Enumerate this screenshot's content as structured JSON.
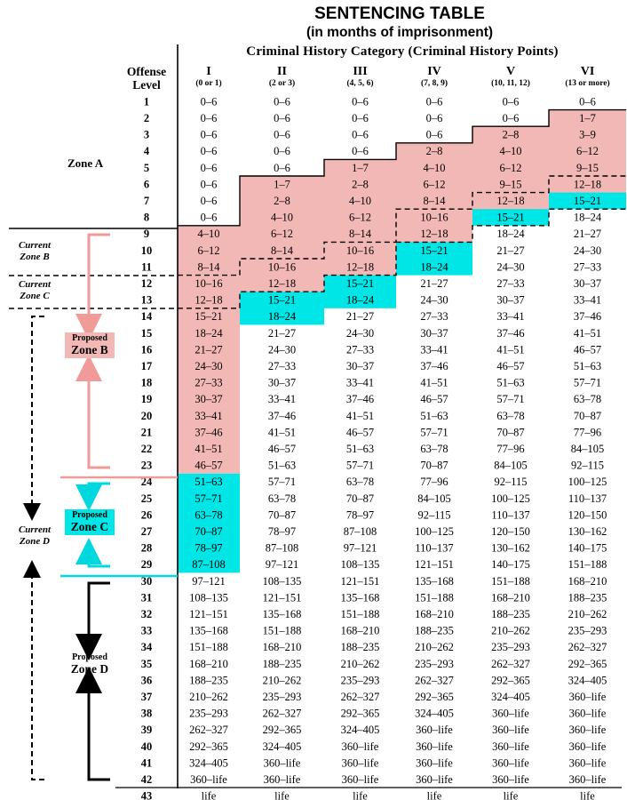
{
  "title": "SENTENCING TABLE",
  "subtitle": "(in months of imprisonment)",
  "header": {
    "category_title": "Criminal History Category (Criminal History Points)",
    "offense_label_line1": "Offense",
    "offense_label_line2": "Level",
    "columns": [
      {
        "roman": "I",
        "points": "(0 or 1)"
      },
      {
        "roman": "II",
        "points": "(2 or 3)"
      },
      {
        "roman": "III",
        "points": "(4, 5, 6)"
      },
      {
        "roman": "IV",
        "points": "(7, 8, 9)"
      },
      {
        "roman": "V",
        "points": "(10, 11, 12)"
      },
      {
        "roman": "VI",
        "points": "(13 or more)"
      }
    ]
  },
  "zones": {
    "zone_a": "Zone A",
    "current_b_line1": "Current",
    "current_b_line2": "Zone B",
    "current_c_line1": "Current",
    "current_c_line2": "Zone C",
    "current_d_line1": "Current",
    "current_d_line2": "Zone D",
    "proposed_b_small": "Proposed",
    "proposed_b_big": "Zone B",
    "proposed_c_small": "Proposed",
    "proposed_c_big": "Zone C",
    "proposed_d_small": "Proposed",
    "proposed_d_big": "Zone D"
  },
  "colors": {
    "pink_fill": "#f2b8b6",
    "cyan_fill": "#00e5e5",
    "pink_arrow": "#f09a9a",
    "cyan_arrow": "#00d8e0"
  },
  "rows": [
    {
      "level": "1",
      "cells": [
        "0–6",
        "0–6",
        "0–6",
        "0–6",
        "0–6",
        "0–6"
      ]
    },
    {
      "level": "2",
      "cells": [
        "0–6",
        "0–6",
        "0–6",
        "0–6",
        "0–6",
        "1–7"
      ]
    },
    {
      "level": "3",
      "cells": [
        "0–6",
        "0–6",
        "0–6",
        "0–6",
        "2–8",
        "3–9"
      ]
    },
    {
      "level": "4",
      "cells": [
        "0–6",
        "0–6",
        "0–6",
        "2–8",
        "4–10",
        "6–12"
      ]
    },
    {
      "level": "5",
      "cells": [
        "0–6",
        "0–6",
        "1–7",
        "4–10",
        "6–12",
        "9–15"
      ]
    },
    {
      "level": "6",
      "cells": [
        "0–6",
        "1–7",
        "2–8",
        "6–12",
        "9–15",
        "12–18"
      ]
    },
    {
      "level": "7",
      "cells": [
        "0–6",
        "2–8",
        "4–10",
        "8–14",
        "12–18",
        "15–21"
      ]
    },
    {
      "level": "8",
      "cells": [
        "0–6",
        "4–10",
        "6–12",
        "10–16",
        "15–21",
        "18–24"
      ]
    },
    {
      "level": "9",
      "cells": [
        "4–10",
        "6–12",
        "8–14",
        "12–18",
        "18–24",
        "21–27"
      ]
    },
    {
      "level": "10",
      "cells": [
        "6–12",
        "8–14",
        "10–16",
        "15–21",
        "21–27",
        "24–30"
      ]
    },
    {
      "level": "11",
      "cells": [
        "8–14",
        "10–16",
        "12–18",
        "18–24",
        "24–30",
        "27–33"
      ]
    },
    {
      "level": "12",
      "cells": [
        "10–16",
        "12–18",
        "15–21",
        "21–27",
        "27–33",
        "30–37"
      ]
    },
    {
      "level": "13",
      "cells": [
        "12–18",
        "15–21",
        "18–24",
        "24–30",
        "30–37",
        "33–41"
      ]
    },
    {
      "level": "14",
      "cells": [
        "15–21",
        "18–24",
        "21–27",
        "27–33",
        "33–41",
        "37–46"
      ]
    },
    {
      "level": "15",
      "cells": [
        "18–24",
        "21–27",
        "24–30",
        "30–37",
        "37–46",
        "41–51"
      ]
    },
    {
      "level": "16",
      "cells": [
        "21–27",
        "24–30",
        "27–33",
        "33–41",
        "41–51",
        "46–57"
      ]
    },
    {
      "level": "17",
      "cells": [
        "24–30",
        "27–33",
        "30–37",
        "37–46",
        "46–57",
        "51–63"
      ]
    },
    {
      "level": "18",
      "cells": [
        "27–33",
        "30–37",
        "33–41",
        "41–51",
        "51–63",
        "57–71"
      ]
    },
    {
      "level": "19",
      "cells": [
        "30–37",
        "33–41",
        "37–46",
        "46–57",
        "57–71",
        "63–78"
      ]
    },
    {
      "level": "20",
      "cells": [
        "33–41",
        "37–46",
        "41–51",
        "51–63",
        "63–78",
        "70–87"
      ]
    },
    {
      "level": "21",
      "cells": [
        "37–46",
        "41–51",
        "46–57",
        "57–71",
        "70–87",
        "77–96"
      ]
    },
    {
      "level": "22",
      "cells": [
        "41–51",
        "46–57",
        "51–63",
        "63–78",
        "77–96",
        "84–105"
      ]
    },
    {
      "level": "23",
      "cells": [
        "46–57",
        "51–63",
        "57–71",
        "70–87",
        "84–105",
        "92–115"
      ]
    },
    {
      "level": "24",
      "cells": [
        "51–63",
        "57–71",
        "63–78",
        "77–96",
        "92–115",
        "100–125"
      ]
    },
    {
      "level": "25",
      "cells": [
        "57–71",
        "63–78",
        "70–87",
        "84–105",
        "100–125",
        "110–137"
      ]
    },
    {
      "level": "26",
      "cells": [
        "63–78",
        "70–87",
        "78–97",
        "92–115",
        "110–137",
        "120–150"
      ]
    },
    {
      "level": "27",
      "cells": [
        "70–87",
        "78–97",
        "87–108",
        "100–125",
        "120–150",
        "130–162"
      ]
    },
    {
      "level": "28",
      "cells": [
        "78–97",
        "87–108",
        "97–121",
        "110–137",
        "130–162",
        "140–175"
      ]
    },
    {
      "level": "29",
      "cells": [
        "87–108",
        "97–121",
        "108–135",
        "121–151",
        "140–175",
        "151–188"
      ]
    },
    {
      "level": "30",
      "cells": [
        "97–121",
        "108–135",
        "121–151",
        "135–168",
        "151–188",
        "168–210"
      ]
    },
    {
      "level": "31",
      "cells": [
        "108–135",
        "121–151",
        "135–168",
        "151–188",
        "168–210",
        "188–235"
      ]
    },
    {
      "level": "32",
      "cells": [
        "121–151",
        "135–168",
        "151–188",
        "168–210",
        "188–235",
        "210–262"
      ]
    },
    {
      "level": "33",
      "cells": [
        "135–168",
        "151–188",
        "168–210",
        "188–235",
        "210–262",
        "235–293"
      ]
    },
    {
      "level": "34",
      "cells": [
        "151–188",
        "168–210",
        "188–235",
        "210–262",
        "235–293",
        "262–327"
      ]
    },
    {
      "level": "35",
      "cells": [
        "168–210",
        "188–235",
        "210–262",
        "235–293",
        "262–327",
        "292–365"
      ]
    },
    {
      "level": "36",
      "cells": [
        "188–235",
        "210–262",
        "235–293",
        "262–327",
        "292–365",
        "324–405"
      ]
    },
    {
      "level": "37",
      "cells": [
        "210–262",
        "235–293",
        "262–327",
        "292–365",
        "324–405",
        "360–life"
      ]
    },
    {
      "level": "38",
      "cells": [
        "235–293",
        "262–327",
        "292–365",
        "324–405",
        "360–life",
        "360–life"
      ]
    },
    {
      "level": "39",
      "cells": [
        "262–327",
        "292–365",
        "324–405",
        "360–life",
        "360–life",
        "360–life"
      ]
    },
    {
      "level": "40",
      "cells": [
        "292–365",
        "324–405",
        "360–life",
        "360–life",
        "360–life",
        "360–life"
      ]
    },
    {
      "level": "41",
      "cells": [
        "324–405",
        "360–life",
        "360–life",
        "360–life",
        "360–life",
        "360–life"
      ]
    },
    {
      "level": "42",
      "cells": [
        "360–life",
        "360–life",
        "360–life",
        "360–life",
        "360–life",
        "360–life"
      ]
    },
    {
      "level": "43",
      "cells": [
        "life",
        "life",
        "life",
        "life",
        "life",
        "life"
      ]
    }
  ]
}
